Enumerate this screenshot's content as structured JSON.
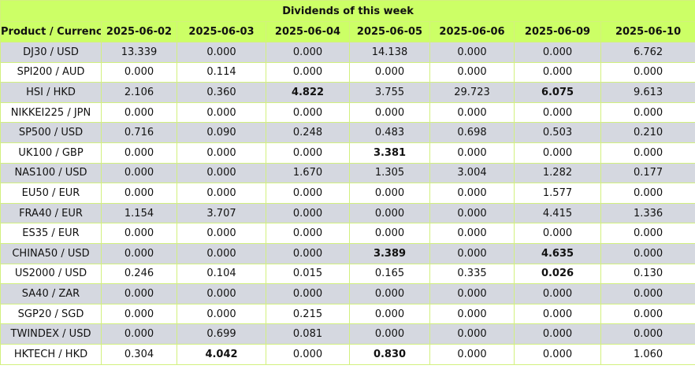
{
  "title": "Dividends of this week",
  "columns": [
    "Product / Currency",
    "2025-06-02",
    "2025-06-03",
    "2025-06-04",
    "2025-06-05",
    "2025-06-06",
    "2025-06-09",
    "2025-06-10"
  ],
  "rows": [
    {
      "product": "DJ30 / USD",
      "values": [
        "13.339",
        "0.000",
        "0.000",
        "14.138",
        "0.000",
        "0.000",
        "6.762"
      ],
      "bold": []
    },
    {
      "product": "SPI200 / AUD",
      "values": [
        "0.000",
        "0.114",
        "0.000",
        "0.000",
        "0.000",
        "0.000",
        "0.000"
      ],
      "bold": []
    },
    {
      "product": "HSI / HKD",
      "values": [
        "2.106",
        "0.360",
        "4.822",
        "3.755",
        "29.723",
        "6.075",
        "9.613"
      ],
      "bold": [
        2,
        5
      ]
    },
    {
      "product": "NIKKEI225 / JPN",
      "values": [
        "0.000",
        "0.000",
        "0.000",
        "0.000",
        "0.000",
        "0.000",
        "0.000"
      ],
      "bold": []
    },
    {
      "product": "SP500 / USD",
      "values": [
        "0.716",
        "0.090",
        "0.248",
        "0.483",
        "0.698",
        "0.503",
        "0.210"
      ],
      "bold": []
    },
    {
      "product": "UK100 / GBP",
      "values": [
        "0.000",
        "0.000",
        "0.000",
        "3.381",
        "0.000",
        "0.000",
        "0.000"
      ],
      "bold": [
        3
      ]
    },
    {
      "product": "NAS100 / USD",
      "values": [
        "0.000",
        "0.000",
        "1.670",
        "1.305",
        "3.004",
        "1.282",
        "0.177"
      ],
      "bold": []
    },
    {
      "product": "EU50 / EUR",
      "values": [
        "0.000",
        "0.000",
        "0.000",
        "0.000",
        "0.000",
        "1.577",
        "0.000"
      ],
      "bold": []
    },
    {
      "product": "FRA40 / EUR",
      "values": [
        "1.154",
        "3.707",
        "0.000",
        "0.000",
        "0.000",
        "4.415",
        "1.336"
      ],
      "bold": []
    },
    {
      "product": "ES35 / EUR",
      "values": [
        "0.000",
        "0.000",
        "0.000",
        "0.000",
        "0.000",
        "0.000",
        "0.000"
      ],
      "bold": []
    },
    {
      "product": "CHINA50 / USD",
      "values": [
        "0.000",
        "0.000",
        "0.000",
        "3.389",
        "0.000",
        "4.635",
        "0.000"
      ],
      "bold": [
        3,
        5
      ]
    },
    {
      "product": "US2000 / USD",
      "values": [
        "0.246",
        "0.104",
        "0.015",
        "0.165",
        "0.335",
        "0.026",
        "0.130"
      ],
      "bold": [
        5
      ]
    },
    {
      "product": "SA40 / ZAR",
      "values": [
        "0.000",
        "0.000",
        "0.000",
        "0.000",
        "0.000",
        "0.000",
        "0.000"
      ],
      "bold": []
    },
    {
      "product": "SGP20 / SGD",
      "values": [
        "0.000",
        "0.000",
        "0.215",
        "0.000",
        "0.000",
        "0.000",
        "0.000"
      ],
      "bold": []
    },
    {
      "product": "TWINDEX / USD",
      "values": [
        "0.000",
        "0.699",
        "0.081",
        "0.000",
        "0.000",
        "0.000",
        "0.000"
      ],
      "bold": []
    },
    {
      "product": "HKTECH / HKD",
      "values": [
        "0.304",
        "4.042",
        "0.000",
        "0.830",
        "0.000",
        "0.000",
        "1.060"
      ],
      "bold": [
        1,
        3
      ]
    }
  ],
  "colors": {
    "header_bg": "#ccff66",
    "odd_row_bg": "#d5d8e0",
    "even_row_bg": "#ffffff",
    "border": "#d2f07e"
  }
}
